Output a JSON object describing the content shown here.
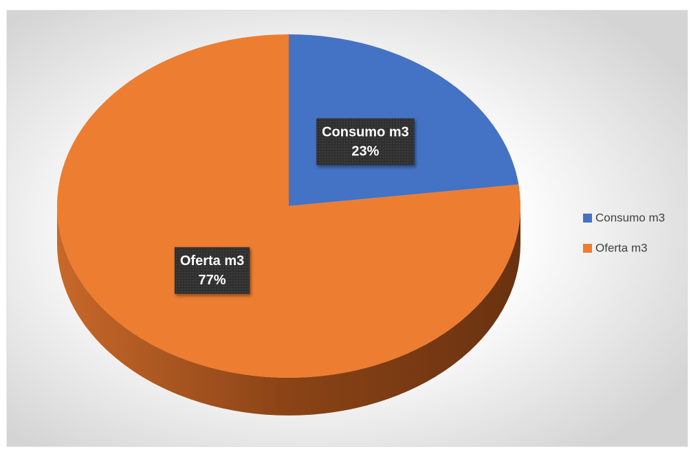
{
  "chart_data": {
    "type": "pie",
    "categories": [
      "Consumo m3",
      "Oferta m3"
    ],
    "values": [
      23,
      77
    ],
    "value_labels": [
      "23%",
      "77%"
    ],
    "colors": [
      "#4472c4",
      "#ed7d31"
    ],
    "legend": "right"
  }
}
